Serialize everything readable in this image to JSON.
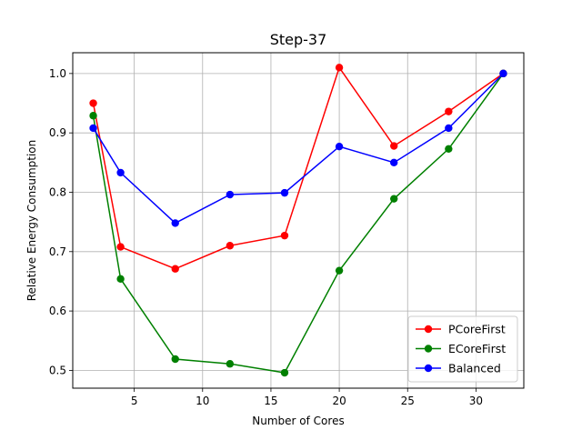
{
  "chart_data": {
    "type": "line",
    "title": "Step-37",
    "xlabel": "Number of Cores",
    "ylabel": "Relative Energy Consumption",
    "xlim": [
      0.5,
      33.5
    ],
    "ylim": [
      0.47,
      1.035
    ],
    "xticks": [
      5,
      10,
      15,
      20,
      25,
      30
    ],
    "xtick_labels": [
      "5",
      "10",
      "15",
      "20",
      "25",
      "30"
    ],
    "yticks": [
      0.5,
      0.6,
      0.7,
      0.8,
      0.9,
      1.0
    ],
    "ytick_labels": [
      "0.5",
      "0.6",
      "0.7",
      "0.8",
      "0.9",
      "1.0"
    ],
    "grid": true,
    "legend_position": "lower-right",
    "x": [
      2,
      4,
      8,
      12,
      16,
      20,
      24,
      28,
      32
    ],
    "series": [
      {
        "name": "PCoreFirst",
        "color": "#ff0000",
        "values": [
          0.95,
          0.708,
          0.671,
          0.71,
          0.727,
          1.01,
          0.878,
          0.936,
          1.0
        ]
      },
      {
        "name": "ECoreFirst",
        "color": "#008000",
        "values": [
          0.929,
          0.654,
          0.519,
          0.511,
          0.496,
          0.668,
          0.789,
          0.873,
          1.0
        ]
      },
      {
        "name": "Balanced",
        "color": "#0000ff",
        "values": [
          0.908,
          0.833,
          0.748,
          0.796,
          0.799,
          0.877,
          0.85,
          0.908,
          1.0
        ]
      }
    ]
  }
}
